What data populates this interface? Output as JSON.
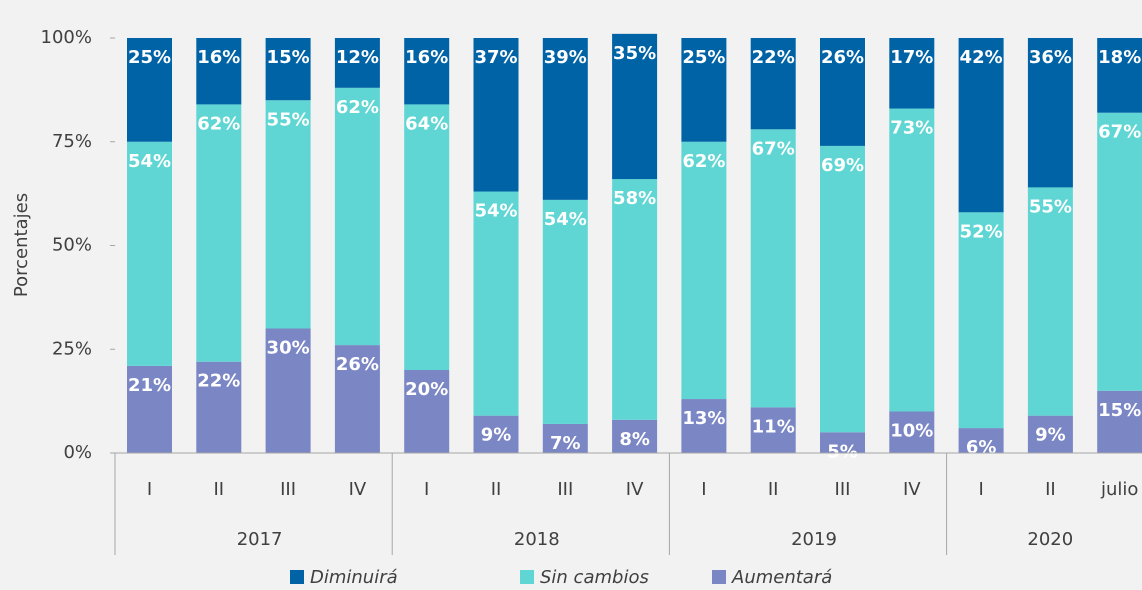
{
  "chart_data": {
    "type": "stacked_bar",
    "y_label": "Porcentajes",
    "category_groups": [
      {
        "name": "2017",
        "categories": [
          "I",
          "II",
          "III",
          "IV"
        ]
      },
      {
        "name": "2018",
        "categories": [
          "I",
          "II",
          "III",
          "IV"
        ]
      },
      {
        "name": "2019",
        "categories": [
          "I",
          "II",
          "III",
          "IV"
        ]
      },
      {
        "name": "2020",
        "categories": [
          "I",
          "II",
          "julio"
        ]
      }
    ],
    "series": [
      {
        "name": "Aumentará",
        "color": "#7b86c4",
        "values": [
          21,
          22,
          30,
          26,
          20,
          9,
          7,
          8,
          13,
          11,
          5,
          10,
          6,
          9,
          15
        ],
        "value_labels": [
          "21%",
          "22%",
          "30%",
          "26%",
          "20%",
          "9%",
          "7%",
          "8%",
          "13%",
          "11%",
          "5%",
          "10%",
          "6%",
          "9%",
          "15%"
        ]
      },
      {
        "name": "Sin cambios",
        "color": "#5fd6d3",
        "values": [
          54,
          62,
          55,
          62,
          64,
          54,
          54,
          58,
          62,
          67,
          69,
          73,
          52,
          55,
          67
        ],
        "value_labels": [
          "54%",
          "62%",
          "55%",
          "62%",
          "64%",
          "54%",
          "54%",
          "58%",
          "62%",
          "67%",
          "69%",
          "73%",
          "52%",
          "55%",
          "67%"
        ]
      },
      {
        "name": "Diminuirá",
        "color": "#0063a6",
        "values": [
          25,
          16,
          15,
          12,
          16,
          37,
          39,
          35,
          25,
          22,
          26,
          17,
          42,
          36,
          18
        ],
        "value_labels": [
          "25%",
          "16%",
          "15%",
          "12%",
          "16%",
          "37%",
          "39%",
          "35%",
          "25%",
          "22%",
          "26%",
          "17%",
          "42%",
          "36%",
          "18%"
        ]
      }
    ],
    "legend_order": [
      2,
      1,
      0
    ],
    "ylim": [
      0,
      100
    ],
    "yticks": [
      {
        "value": 0,
        "label": "0%"
      },
      {
        "value": 25,
        "label": "25%"
      },
      {
        "value": 50,
        "label": "50%"
      },
      {
        "value": 75,
        "label": "75%"
      },
      {
        "value": 100,
        "label": "100%"
      }
    ]
  }
}
